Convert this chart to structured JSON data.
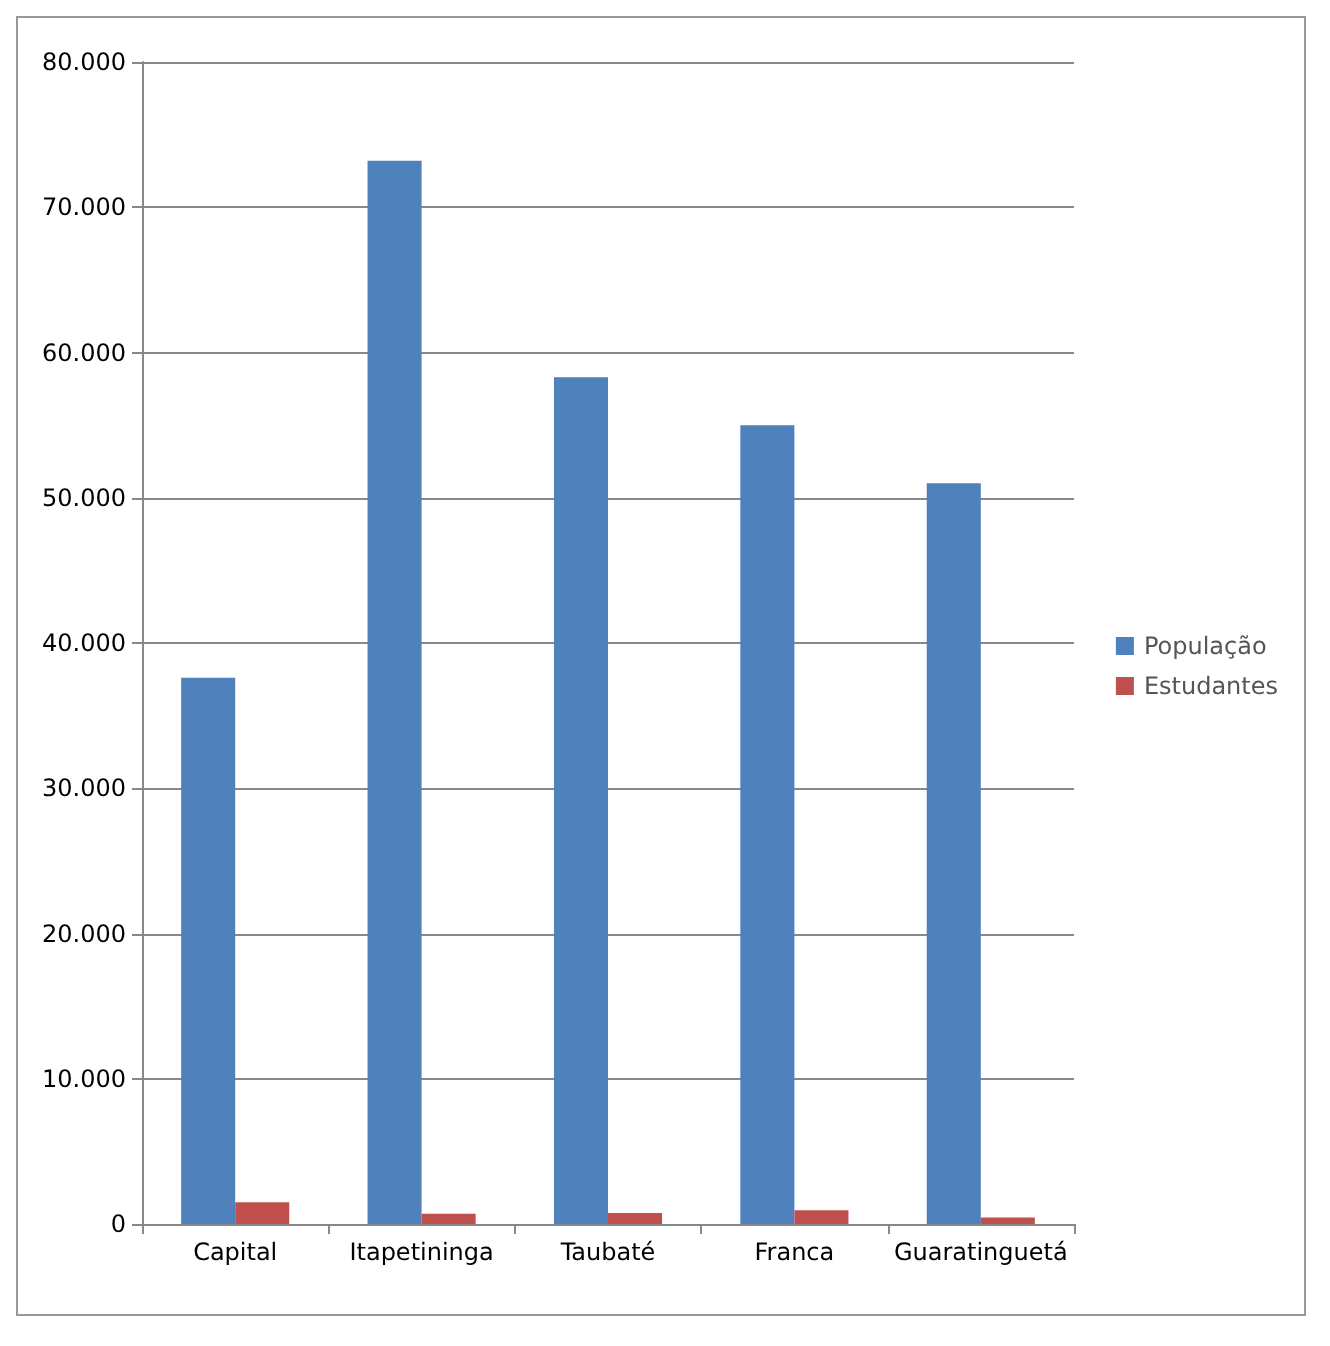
{
  "chart_data": {
    "type": "bar",
    "categories": [
      "Capital",
      "Itapetininga",
      "Taubaté",
      "Franca",
      "Guaratinguetá"
    ],
    "series": [
      {
        "name": "População",
        "color": "#4f81bd",
        "values": [
          37600,
          73200,
          58300,
          55000,
          51000
        ]
      },
      {
        "name": "Estudantes",
        "color": "#c0504d",
        "values": [
          1500,
          700,
          750,
          950,
          450
        ]
      }
    ],
    "ylim": [
      0,
      80000
    ],
    "yticks": [
      {
        "value": 0,
        "label": "0"
      },
      {
        "value": 10000,
        "label": "10.000"
      },
      {
        "value": 20000,
        "label": "20.000"
      },
      {
        "value": 30000,
        "label": "30.000"
      },
      {
        "value": 40000,
        "label": "40.000"
      },
      {
        "value": 50000,
        "label": "50.000"
      },
      {
        "value": 60000,
        "label": "60.000"
      },
      {
        "value": 70000,
        "label": "70.000"
      },
      {
        "value": 80000,
        "label": "80.000"
      }
    ],
    "grid": "y",
    "legend": "right"
  }
}
